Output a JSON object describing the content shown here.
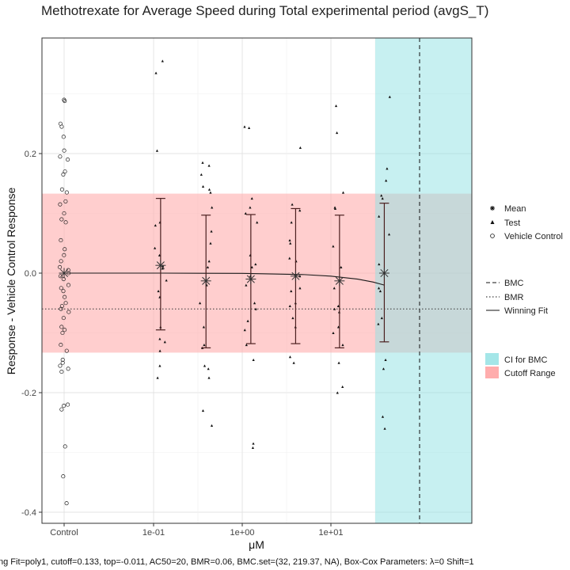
{
  "chart_data": {
    "type": "scatter",
    "title": "Methotrexate for Average Speed during Total experimental period (avgS_T)",
    "xlabel": "μM",
    "ylabel": "Response - Vehicle Control Response",
    "x_ticks": [
      "Control",
      "1e-01",
      "1e+00",
      "1e+01"
    ],
    "y_ticks": [
      "0.2",
      "0.0",
      "-0.2",
      "-0.4"
    ],
    "ylim": [
      -0.42,
      0.39
    ],
    "grid": true,
    "legend": {
      "shapes": [
        "Mean",
        "Test",
        "Vehicle Control"
      ],
      "lines": [
        "BMC",
        "BMR",
        "Winning Fit"
      ],
      "fills": [
        "CI for BMC",
        "Cutoff Range"
      ]
    },
    "colors": {
      "cutoff_range": "#ffadad",
      "ci_bmc": "#8fe1e3",
      "fit": "#1a1a1a"
    },
    "cutoff": 0.133,
    "bmr_line": -0.06,
    "bmc_log10": 2.0,
    "ci_bmc_log10_range": [
      1.5,
      2.3
    ],
    "vehicle_control": [
      0.29,
      0.288,
      0.25,
      0.245,
      0.228,
      0.205,
      0.195,
      0.19,
      0.17,
      0.165,
      0.14,
      0.135,
      0.12,
      0.115,
      0.1,
      0.09,
      0.085,
      0.055,
      0.04,
      0.03,
      0.02,
      0.01,
      0.005,
      0,
      -0.005,
      -0.01,
      -0.02,
      -0.025,
      -0.03,
      -0.04,
      -0.05,
      -0.055,
      -0.06,
      -0.065,
      -0.075,
      -0.09,
      -0.095,
      -0.1,
      -0.12,
      -0.13,
      -0.145,
      -0.15,
      -0.155,
      -0.16,
      -0.165,
      -0.22,
      -0.222,
      -0.228,
      -0.29,
      -0.34,
      -0.385
    ],
    "test_groups": [
      {
        "x": 0.12,
        "values": [
          0.355,
          0.335,
          0.205,
          0.085,
          0.08,
          0.042,
          0.03,
          0.012,
          0.008,
          -0.012,
          -0.03,
          -0.04,
          -0.09,
          -0.11,
          -0.115,
          -0.13,
          -0.155,
          -0.175
        ],
        "mean": 0.013,
        "ci": [
          -0.095,
          0.125
        ]
      },
      {
        "x": 0.39,
        "values": [
          0.185,
          0.18,
          0.165,
          0.145,
          0.14,
          0.135,
          0.11,
          0.07,
          0.05,
          0.02,
          0.01,
          -0.02,
          -0.05,
          -0.09,
          -0.12,
          -0.125,
          -0.155,
          -0.16,
          -0.175,
          -0.23,
          -0.255
        ],
        "mean": -0.013,
        "ci": [
          -0.125,
          0.097
        ]
      },
      {
        "x": 1.25,
        "values": [
          0.245,
          0.243,
          0.125,
          0.11,
          0.1,
          0.085,
          0.03,
          0.015,
          0.01,
          -0.005,
          -0.02,
          -0.05,
          -0.06,
          -0.08,
          -0.095,
          -0.12,
          -0.145,
          -0.285,
          -0.292
        ],
        "mean": -0.01,
        "ci": [
          -0.118,
          0.098
        ]
      },
      {
        "x": 4.0,
        "values": [
          0.21,
          0.115,
          0.105,
          0.085,
          0.055,
          0.05,
          0.025,
          0.02,
          -0.005,
          -0.025,
          -0.03,
          -0.05,
          -0.055,
          -0.075,
          -0.09,
          -0.14,
          -0.15
        ],
        "mean": -0.005,
        "ci": [
          -0.118,
          0.108
        ]
      },
      {
        "x": 12.5,
        "values": [
          0.28,
          0.235,
          0.135,
          0.11,
          0.108,
          0.045,
          0.01,
          -0.025,
          -0.055,
          -0.06,
          -0.065,
          -0.09,
          -0.1,
          -0.12,
          -0.15,
          -0.19,
          -0.2
        ],
        "mean": -0.013,
        "ci": [
          -0.125,
          0.097
        ]
      },
      {
        "x": 40,
        "values": [
          0.295,
          0.175,
          0.155,
          0.13,
          0.125,
          0.095,
          0.065,
          0.015,
          -0.025,
          -0.03,
          -0.075,
          -0.085,
          -0.145,
          -0.16,
          -0.24,
          -0.26
        ],
        "mean": 0.0,
        "ci": [
          -0.115,
          0.117
        ]
      }
    ],
    "fit_curve": {
      "x": [
        0.12,
        1,
        5,
        10,
        20,
        30,
        40
      ],
      "y": [
        0.0,
        -0.0004,
        -0.0025,
        -0.005,
        -0.01,
        -0.015,
        -0.02
      ]
    }
  },
  "caption": "ng Fit=poly1, cutoff=0.133, top=-0.011, AC50=20, BMR=0.06, BMC.set=(32, 219.37, NA), Box-Cox Parameters: λ=0 Shift=1"
}
